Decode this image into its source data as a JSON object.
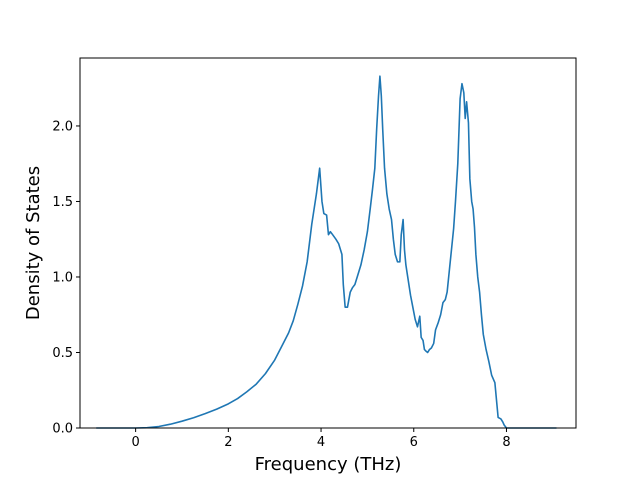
{
  "chart_data": {
    "type": "line",
    "title": "",
    "xlabel": "Frequency (THz)",
    "ylabel": "Density of States",
    "xlim": [
      -1.2,
      9.5
    ],
    "ylim": [
      0.0,
      2.45
    ],
    "xticks": [
      0,
      2,
      4,
      6,
      8
    ],
    "xtick_labels": [
      "0",
      "2",
      "4",
      "6",
      "8"
    ],
    "yticks": [
      0.0,
      0.5,
      1.0,
      1.5,
      2.0
    ],
    "ytick_labels": [
      "0.0",
      "0.5",
      "1.0",
      "1.5",
      "2.0"
    ],
    "grid": false,
    "legend": "none",
    "series": [
      {
        "color": "#1f77b4",
        "x": [
          -0.85,
          -0.5,
          0.0,
          0.25,
          0.5,
          0.75,
          1.0,
          1.25,
          1.5,
          1.75,
          2.0,
          2.2,
          2.4,
          2.6,
          2.8,
          3.0,
          3.15,
          3.3,
          3.4,
          3.5,
          3.6,
          3.7,
          3.8,
          3.9,
          3.97,
          4.02,
          4.06,
          4.12,
          4.16,
          4.2,
          4.25,
          4.32,
          4.38,
          4.45,
          4.48,
          4.52,
          4.57,
          4.63,
          4.68,
          4.73,
          4.8,
          4.86,
          4.93,
          5.0,
          5.06,
          5.11,
          5.16,
          5.2,
          5.24,
          5.27,
          5.3,
          5.33,
          5.37,
          5.42,
          5.47,
          5.52,
          5.56,
          5.6,
          5.65,
          5.7,
          5.73,
          5.77,
          5.8,
          5.83,
          5.87,
          5.93,
          5.98,
          6.03,
          6.08,
          6.13,
          6.16,
          6.2,
          6.23,
          6.26,
          6.3,
          6.34,
          6.38,
          6.43,
          6.47,
          6.53,
          6.58,
          6.63,
          6.68,
          6.72,
          6.77,
          6.82,
          6.86,
          6.9,
          6.95,
          7.0,
          7.04,
          7.08,
          7.11,
          7.14,
          7.18,
          7.21,
          7.25,
          7.28,
          7.31,
          7.34,
          7.38,
          7.42,
          7.46,
          7.5,
          7.56,
          7.62,
          7.68,
          7.75,
          7.82,
          7.88,
          7.92,
          7.95,
          8.0,
          8.05,
          8.1,
          8.15,
          8.2,
          8.25,
          8.35,
          8.5,
          9.0,
          9.08
        ],
        "y": [
          0.0,
          0.0,
          0.0,
          0.002,
          0.01,
          0.025,
          0.045,
          0.068,
          0.095,
          0.125,
          0.16,
          0.195,
          0.24,
          0.29,
          0.36,
          0.45,
          0.54,
          0.63,
          0.71,
          0.82,
          0.94,
          1.1,
          1.35,
          1.55,
          1.72,
          1.5,
          1.42,
          1.41,
          1.28,
          1.3,
          1.28,
          1.25,
          1.22,
          1.15,
          0.95,
          0.8,
          0.8,
          0.9,
          0.93,
          0.95,
          1.02,
          1.08,
          1.18,
          1.3,
          1.45,
          1.58,
          1.72,
          1.98,
          2.2,
          2.33,
          2.2,
          1.98,
          1.72,
          1.55,
          1.45,
          1.38,
          1.25,
          1.15,
          1.1,
          1.1,
          1.28,
          1.38,
          1.18,
          1.08,
          1.0,
          0.88,
          0.8,
          0.72,
          0.67,
          0.74,
          0.6,
          0.58,
          0.52,
          0.51,
          0.5,
          0.52,
          0.53,
          0.56,
          0.65,
          0.7,
          0.75,
          0.83,
          0.85,
          0.9,
          1.05,
          1.2,
          1.32,
          1.5,
          1.75,
          2.18,
          2.28,
          2.22,
          2.05,
          2.16,
          2.02,
          1.65,
          1.5,
          1.45,
          1.33,
          1.15,
          1.0,
          0.9,
          0.75,
          0.62,
          0.52,
          0.44,
          0.35,
          0.3,
          0.07,
          0.06,
          0.04,
          0.02,
          0.0,
          0.0,
          0.0,
          0.0,
          0.0,
          0.0,
          0.0,
          0.0,
          0.0,
          0.0
        ]
      }
    ]
  }
}
